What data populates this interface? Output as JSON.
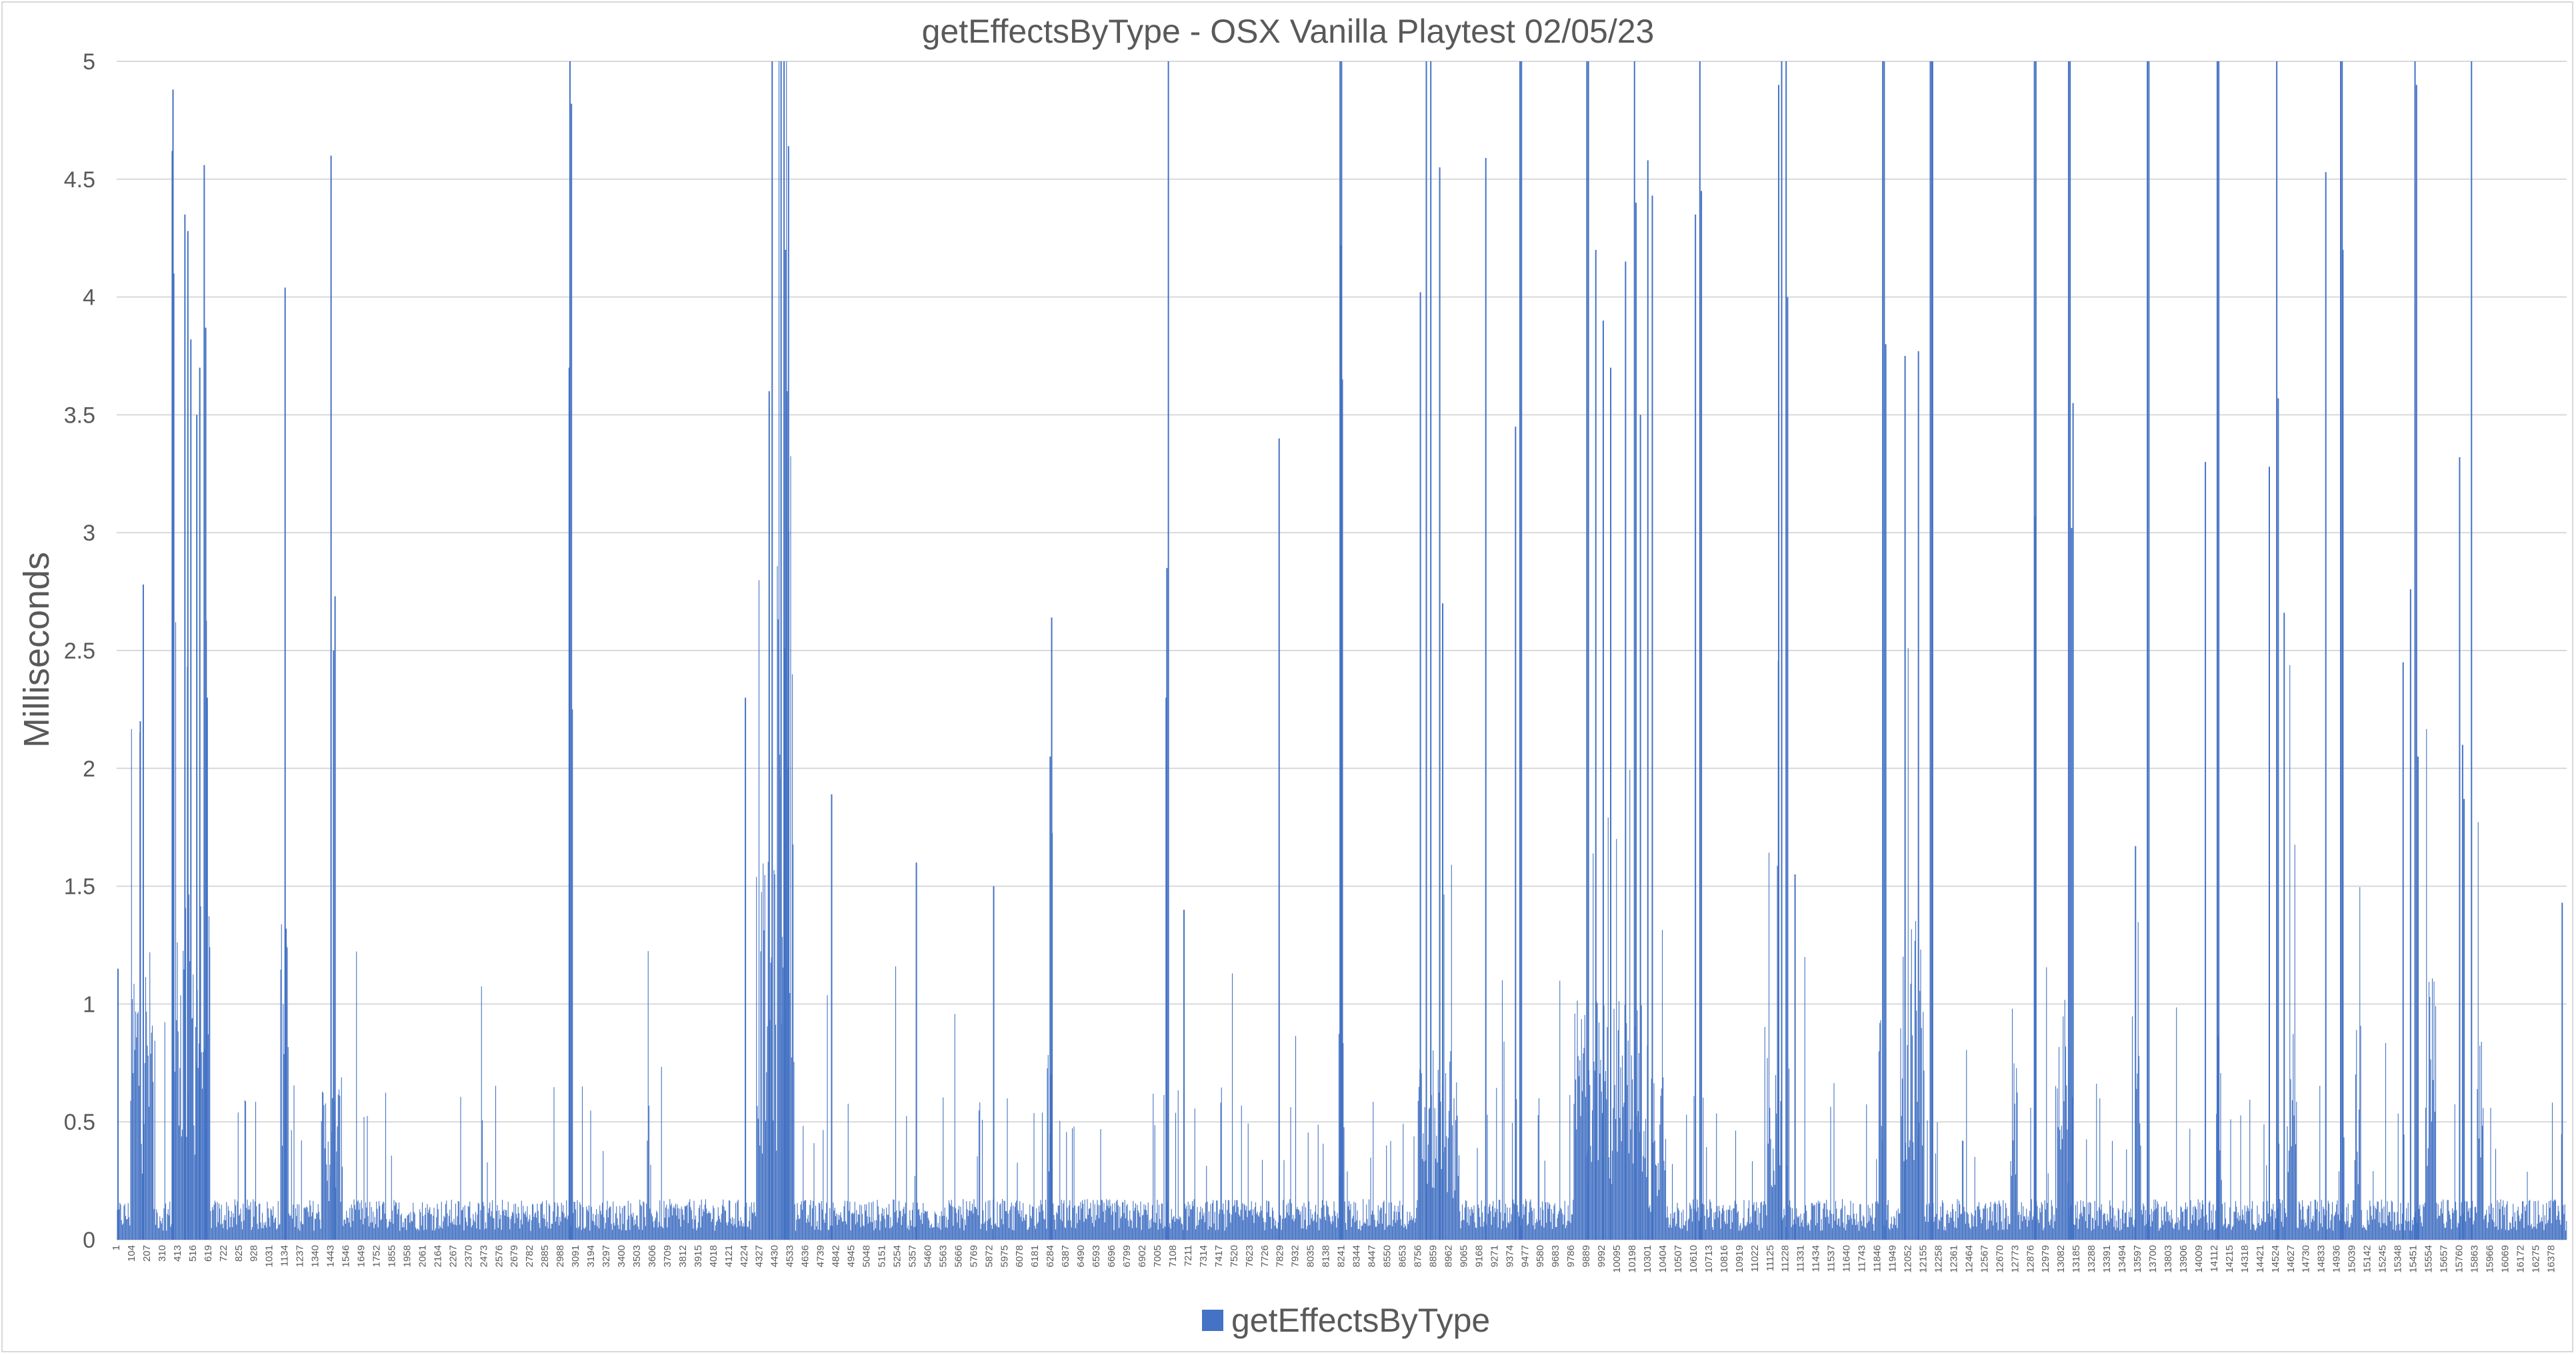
{
  "chart_data": {
    "type": "bar",
    "title": "getEffectsByType - OSX Vanilla Playtest 02/05/23",
    "xlabel": "",
    "ylabel": "Milliseconds",
    "ylim": [
      0,
      5
    ],
    "yticks": [
      0,
      0.5,
      1,
      1.5,
      2,
      2.5,
      3,
      3.5,
      4,
      4.5,
      5
    ],
    "ytick_labels": [
      "0",
      "0.5",
      "1",
      "1.5",
      "2",
      "2.5",
      "3",
      "3.5",
      "4",
      "4.5",
      "5"
    ],
    "x_range": [
      1,
      16480
    ],
    "x_tick_labels": [
      "1",
      "104",
      "207",
      "310",
      "413",
      "516",
      "619",
      "722",
      "825",
      "928",
      "1031",
      "1134",
      "1237",
      "1340",
      "1443",
      "1546",
      "1649",
      "1752",
      "1855",
      "1958",
      "2061",
      "2164",
      "2267",
      "2370",
      "2473",
      "2576",
      "2679",
      "2782",
      "2885",
      "2988",
      "3091",
      "3194",
      "3297",
      "3400",
      "3503",
      "3606",
      "3709",
      "3812",
      "3915",
      "4018",
      "4121",
      "4224",
      "4327",
      "4430",
      "4533",
      "4636",
      "4739",
      "4842",
      "4945",
      "5048",
      "5151",
      "5254",
      "5357",
      "5460",
      "5563",
      "5666",
      "5769",
      "5872",
      "5975",
      "6078",
      "6181",
      "6284",
      "6387",
      "6490",
      "6593",
      "6696",
      "6799",
      "6902",
      "7005",
      "7108",
      "7211",
      "7314",
      "7417",
      "7520",
      "7623",
      "7726",
      "7829",
      "7932",
      "8035",
      "8138",
      "8241",
      "8344",
      "8447",
      "8550",
      "8653",
      "8756",
      "8859",
      "8962",
      "9065",
      "9168",
      "9271",
      "9374",
      "9477",
      "9580",
      "9683",
      "9786",
      "9889",
      "9992",
      "10095",
      "10198",
      "10301",
      "10404",
      "10507",
      "10610",
      "10713",
      "10816",
      "10919",
      "11022",
      "11125",
      "11228",
      "11331",
      "11434",
      "11537",
      "11640",
      "11743",
      "11846",
      "11949",
      "12052",
      "12155",
      "12258",
      "12361",
      "12464",
      "12567",
      "12670",
      "12773",
      "12876",
      "12979",
      "13082",
      "13185",
      "13288",
      "13391",
      "13494",
      "13597",
      "13700",
      "13803",
      "13906",
      "14009",
      "14112",
      "14215",
      "14318",
      "14421",
      "14524",
      "14627",
      "14730",
      "14833",
      "14936",
      "15039",
      "15142",
      "15245",
      "15348",
      "15451",
      "15554",
      "15657",
      "15760",
      "15863",
      "15966",
      "16069",
      "16172",
      "16275",
      "16378"
    ],
    "series": [
      {
        "name": "getEffectsByType",
        "color": "#4472c4",
        "baseline_level": 0.15,
        "dense_regions": [
          {
            "x_range": [
              90,
              250
            ],
            "level": 1.1
          },
          {
            "x_range": [
              370,
              630
            ],
            "level": 1.3
          },
          {
            "x_range": [
              1100,
              1160
            ],
            "level": 1.2
          },
          {
            "x_range": [
              1380,
              1520
            ],
            "level": 0.6
          },
          {
            "x_range": [
              4300,
              4440
            ],
            "level": 1.4
          },
          {
            "x_range": [
              4440,
              4560
            ],
            "level": 3.0
          },
          {
            "x_range": [
              6260,
              6300
            ],
            "level": 0.8
          },
          {
            "x_range": [
              8220,
              8260
            ],
            "level": 1.0
          },
          {
            "x_range": [
              8750,
              9030
            ],
            "level": 0.7
          },
          {
            "x_range": [
              9800,
              10300
            ],
            "level": 0.9
          },
          {
            "x_range": [
              10320,
              10420
            ],
            "level": 0.7
          },
          {
            "x_range": [
              11100,
              11200
            ],
            "level": 0.8
          },
          {
            "x_range": [
              11850,
              11880
            ],
            "level": 1.0
          },
          {
            "x_range": [
              12000,
              12160
            ],
            "level": 1.2
          },
          {
            "x_range": [
              12740,
              12790
            ],
            "level": 0.9
          },
          {
            "x_range": [
              13050,
              13130
            ],
            "level": 0.9
          },
          {
            "x_range": [
              13580,
              13620
            ],
            "level": 0.7
          },
          {
            "x_range": [
              14120,
              14160
            ],
            "level": 0.8
          },
          {
            "x_range": [
              14600,
              14660
            ],
            "level": 0.8
          },
          {
            "x_range": [
              15050,
              15100
            ],
            "level": 0.8
          },
          {
            "x_range": [
              15530,
              15600
            ],
            "level": 1.0
          },
          {
            "x_range": [
              15880,
              15920
            ],
            "level": 0.8
          }
        ],
        "spikes": [
          {
            "x": 10,
            "value": 1.15
          },
          {
            "x": 180,
            "value": 2.78
          },
          {
            "x": 160,
            "value": 2.2
          },
          {
            "x": 380,
            "value": 4.88
          },
          {
            "x": 375,
            "value": 4.62
          },
          {
            "x": 385,
            "value": 4.1
          },
          {
            "x": 460,
            "value": 4.35
          },
          {
            "x": 480,
            "value": 4.28
          },
          {
            "x": 500,
            "value": 3.82
          },
          {
            "x": 540,
            "value": 3.5
          },
          {
            "x": 560,
            "value": 3.7
          },
          {
            "x": 590,
            "value": 4.56
          },
          {
            "x": 600,
            "value": 3.87
          },
          {
            "x": 610,
            "value": 2.3
          },
          {
            "x": 1134,
            "value": 4.04
          },
          {
            "x": 1140,
            "value": 1.32
          },
          {
            "x": 1443,
            "value": 4.6
          },
          {
            "x": 1470,
            "value": 2.73
          },
          {
            "x": 1460,
            "value": 2.5
          },
          {
            "x": 3050,
            "value": 5.0
          },
          {
            "x": 3060,
            "value": 4.82
          },
          {
            "x": 3045,
            "value": 3.7
          },
          {
            "x": 3065,
            "value": 2.25
          },
          {
            "x": 4230,
            "value": 2.3
          },
          {
            "x": 4390,
            "value": 3.6
          },
          {
            "x": 4410,
            "value": 5.0
          },
          {
            "x": 4470,
            "value": 5.0
          },
          {
            "x": 4490,
            "value": 5.0
          },
          {
            "x": 4500,
            "value": 4.2
          },
          {
            "x": 4520,
            "value": 4.64
          },
          {
            "x": 4510,
            "value": 3.6
          },
          {
            "x": 4810,
            "value": 1.89
          },
          {
            "x": 5380,
            "value": 1.6
          },
          {
            "x": 5900,
            "value": 1.5
          },
          {
            "x": 6290,
            "value": 2.64
          },
          {
            "x": 6280,
            "value": 2.05
          },
          {
            "x": 7075,
            "value": 5.0
          },
          {
            "x": 7065,
            "value": 2.85
          },
          {
            "x": 7060,
            "value": 2.3
          },
          {
            "x": 7180,
            "value": 1.4
          },
          {
            "x": 7820,
            "value": 3.4
          },
          {
            "x": 8230,
            "value": 5.0
          },
          {
            "x": 8240,
            "value": 5.0
          },
          {
            "x": 8235,
            "value": 4.22
          },
          {
            "x": 8245,
            "value": 3.65
          },
          {
            "x": 8770,
            "value": 4.02
          },
          {
            "x": 8810,
            "value": 5.0
          },
          {
            "x": 8840,
            "value": 5.0
          },
          {
            "x": 8900,
            "value": 4.55
          },
          {
            "x": 8920,
            "value": 2.7
          },
          {
            "x": 9210,
            "value": 4.59
          },
          {
            "x": 9410,
            "value": 3.45
          },
          {
            "x": 9440,
            "value": 5.0
          },
          {
            "x": 9450,
            "value": 5.0
          },
          {
            "x": 9890,
            "value": 5.0
          },
          {
            "x": 9900,
            "value": 5.0
          },
          {
            "x": 9950,
            "value": 4.2
          },
          {
            "x": 10000,
            "value": 3.9
          },
          {
            "x": 10050,
            "value": 3.7
          },
          {
            "x": 10150,
            "value": 4.15
          },
          {
            "x": 10210,
            "value": 5.0
          },
          {
            "x": 10220,
            "value": 4.4
          },
          {
            "x": 10250,
            "value": 3.5
          },
          {
            "x": 10300,
            "value": 4.58
          },
          {
            "x": 10330,
            "value": 4.43
          },
          {
            "x": 10620,
            "value": 4.35
          },
          {
            "x": 10650,
            "value": 5.0
          },
          {
            "x": 10660,
            "value": 4.45
          },
          {
            "x": 11180,
            "value": 4.9
          },
          {
            "x": 11200,
            "value": 5.0
          },
          {
            "x": 11230,
            "value": 5.0
          },
          {
            "x": 11240,
            "value": 4.0
          },
          {
            "x": 11290,
            "value": 1.55
          },
          {
            "x": 11880,
            "value": 5.0
          },
          {
            "x": 11890,
            "value": 5.0
          },
          {
            "x": 11900,
            "value": 3.8
          },
          {
            "x": 12030,
            "value": 3.75
          },
          {
            "x": 12120,
            "value": 3.77
          },
          {
            "x": 12200,
            "value": 5.0
          },
          {
            "x": 12210,
            "value": 5.0
          },
          {
            "x": 12215,
            "value": 5.0
          },
          {
            "x": 12900,
            "value": 5.0
          },
          {
            "x": 12910,
            "value": 5.0
          },
          {
            "x": 12905,
            "value": 3.07
          },
          {
            "x": 13130,
            "value": 5.0
          },
          {
            "x": 13140,
            "value": 5.0
          },
          {
            "x": 13160,
            "value": 3.55
          },
          {
            "x": 13150,
            "value": 3.02
          },
          {
            "x": 13580,
            "value": 1.67
          },
          {
            "x": 13660,
            "value": 5.0
          },
          {
            "x": 13670,
            "value": 5.0
          },
          {
            "x": 14050,
            "value": 3.3
          },
          {
            "x": 14130,
            "value": 5.0
          },
          {
            "x": 14140,
            "value": 5.0
          },
          {
            "x": 14480,
            "value": 3.28
          },
          {
            "x": 14530,
            "value": 5.0
          },
          {
            "x": 14540,
            "value": 3.57
          },
          {
            "x": 14580,
            "value": 2.66
          },
          {
            "x": 14860,
            "value": 4.53
          },
          {
            "x": 14960,
            "value": 5.0
          },
          {
            "x": 14970,
            "value": 5.0
          },
          {
            "x": 14975,
            "value": 4.2
          },
          {
            "x": 15380,
            "value": 2.45
          },
          {
            "x": 15430,
            "value": 2.76
          },
          {
            "x": 15460,
            "value": 5.0
          },
          {
            "x": 15470,
            "value": 4.9
          },
          {
            "x": 15480,
            "value": 2.05
          },
          {
            "x": 15760,
            "value": 3.32
          },
          {
            "x": 15780,
            "value": 2.1
          },
          {
            "x": 15790,
            "value": 1.87
          },
          {
            "x": 15840,
            "value": 5.0
          },
          {
            "x": 16450,
            "value": 1.43
          }
        ]
      }
    ],
    "legend": {
      "position": "bottom",
      "label": "getEffectsByType"
    },
    "grid": true
  }
}
